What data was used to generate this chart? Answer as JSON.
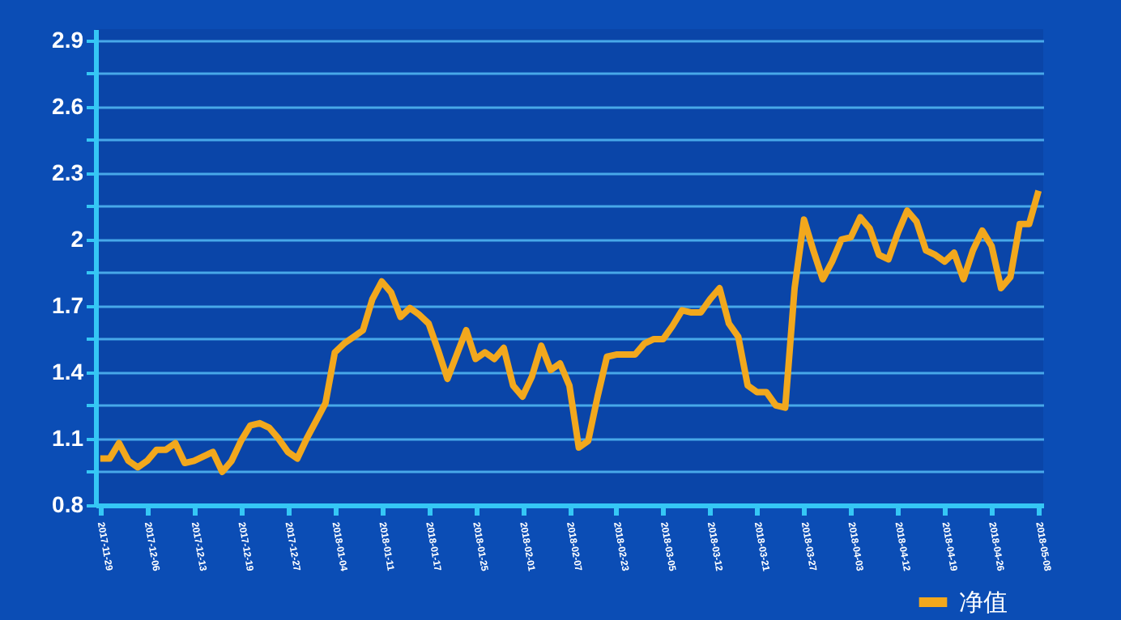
{
  "chart_data": {
    "type": "line",
    "categories": [
      "2017-11-29",
      null,
      null,
      null,
      null,
      "2017-12-06",
      null,
      null,
      null,
      null,
      "2017-12-13",
      null,
      null,
      null,
      null,
      "2017-12-19",
      null,
      null,
      null,
      null,
      "2017-12-27",
      null,
      null,
      null,
      null,
      "2018-01-04",
      null,
      null,
      null,
      null,
      "2018-01-11",
      null,
      null,
      null,
      null,
      "2018-01-17",
      null,
      null,
      null,
      null,
      "2018-01-25",
      null,
      null,
      null,
      null,
      "2018-02-01",
      null,
      null,
      null,
      null,
      "2018-02-07",
      null,
      null,
      null,
      null,
      "2018-02-23",
      null,
      null,
      null,
      null,
      "2018-03-05",
      null,
      null,
      null,
      null,
      "2018-03-12",
      null,
      null,
      null,
      null,
      "2018-03-21",
      null,
      null,
      null,
      null,
      "2018-03-27",
      null,
      null,
      null,
      null,
      "2018-04-03",
      null,
      null,
      null,
      null,
      "2018-04-12",
      null,
      null,
      null,
      null,
      "2018-04-19",
      null,
      null,
      null,
      null,
      "2018-04-26",
      null,
      null,
      null,
      null,
      "2018-05-08"
    ],
    "series": [
      {
        "name": "净值",
        "color": "#f2a81d",
        "values": [
          1.01,
          1.01,
          1.08,
          1.0,
          0.97,
          1.0,
          1.05,
          1.05,
          1.08,
          0.99,
          1.0,
          1.02,
          1.04,
          0.95,
          1.0,
          1.09,
          1.16,
          1.17,
          1.15,
          1.1,
          1.04,
          1.01,
          1.1,
          1.18,
          1.26,
          1.49,
          1.53,
          1.56,
          1.59,
          1.73,
          1.81,
          1.76,
          1.65,
          1.69,
          1.66,
          1.62,
          1.5,
          1.37,
          1.48,
          1.59,
          1.46,
          1.49,
          1.46,
          1.51,
          1.34,
          1.29,
          1.38,
          1.52,
          1.41,
          1.44,
          1.34,
          1.06,
          1.09,
          1.29,
          1.47,
          1.48,
          1.48,
          1.48,
          1.53,
          1.55,
          1.55,
          1.61,
          1.68,
          1.67,
          1.67,
          1.73,
          1.78,
          1.62,
          1.56,
          1.34,
          1.31,
          1.31,
          1.25,
          1.24,
          1.78,
          2.09,
          1.95,
          1.82,
          1.9,
          2.0,
          2.01,
          2.1,
          2.05,
          1.93,
          1.91,
          2.03,
          2.13,
          2.08,
          1.95,
          1.93,
          1.9,
          1.94,
          1.82,
          1.95,
          2.04,
          1.97,
          1.78,
          1.83,
          2.07,
          2.07,
          2.22
        ]
      }
    ],
    "ylim": [
      0.8,
      2.95
    ],
    "yticks": [
      0.8,
      {
        "value": 0.95,
        "label": null
      },
      1.1,
      {
        "value": 1.25,
        "label": null
      },
      1.4,
      {
        "value": 1.55,
        "label": null
      },
      1.7,
      {
        "value": 1.85,
        "label": null
      },
      2,
      {
        "value": 2.15,
        "label": null
      },
      2.3,
      {
        "value": 2.45,
        "label": null
      },
      2.6,
      {
        "value": 2.75,
        "label": null
      },
      2.9
    ],
    "grid": "y",
    "legend": "bottom right",
    "line_style": "solid"
  }
}
